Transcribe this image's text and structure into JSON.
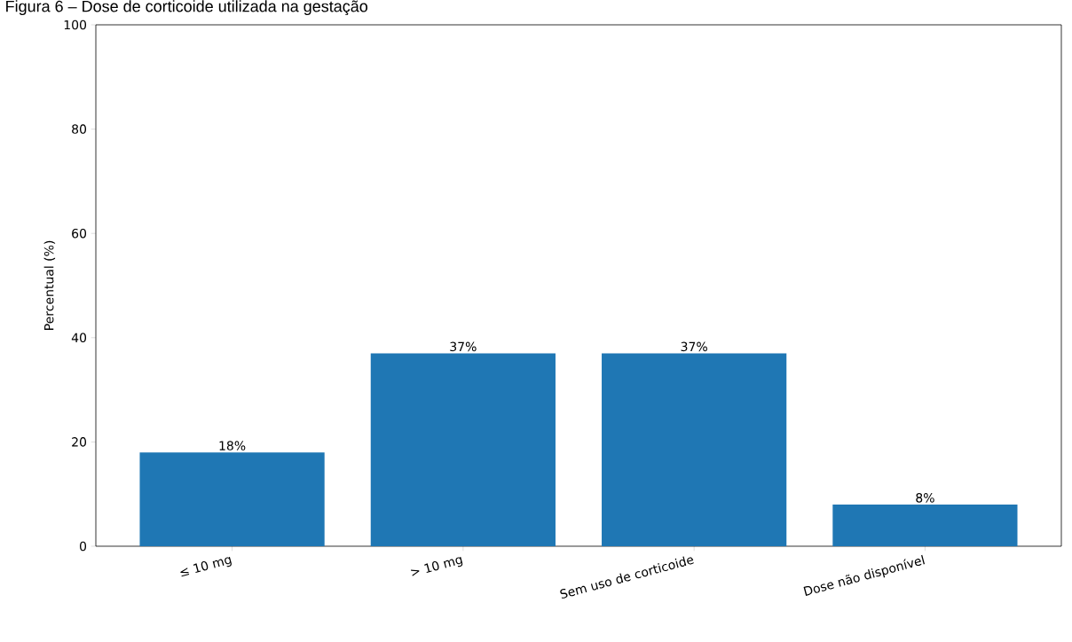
{
  "chart_data": {
    "type": "bar",
    "title": "Figura 6 – Dose de corticoide utilizada na gestação",
    "categories": [
      "≤ 10 mg",
      "> 10 mg",
      "Sem uso de corticoide",
      "Dose não disponível"
    ],
    "values": [
      18,
      37,
      37,
      8
    ],
    "value_labels": [
      "18%",
      "37%",
      "37%",
      "8%"
    ],
    "color": "#1f77b4",
    "ylabel": "Percentual (%)",
    "ylim": [
      0,
      100
    ],
    "yticks": [
      0,
      20,
      40,
      60,
      80,
      100
    ],
    "grid": false
  }
}
